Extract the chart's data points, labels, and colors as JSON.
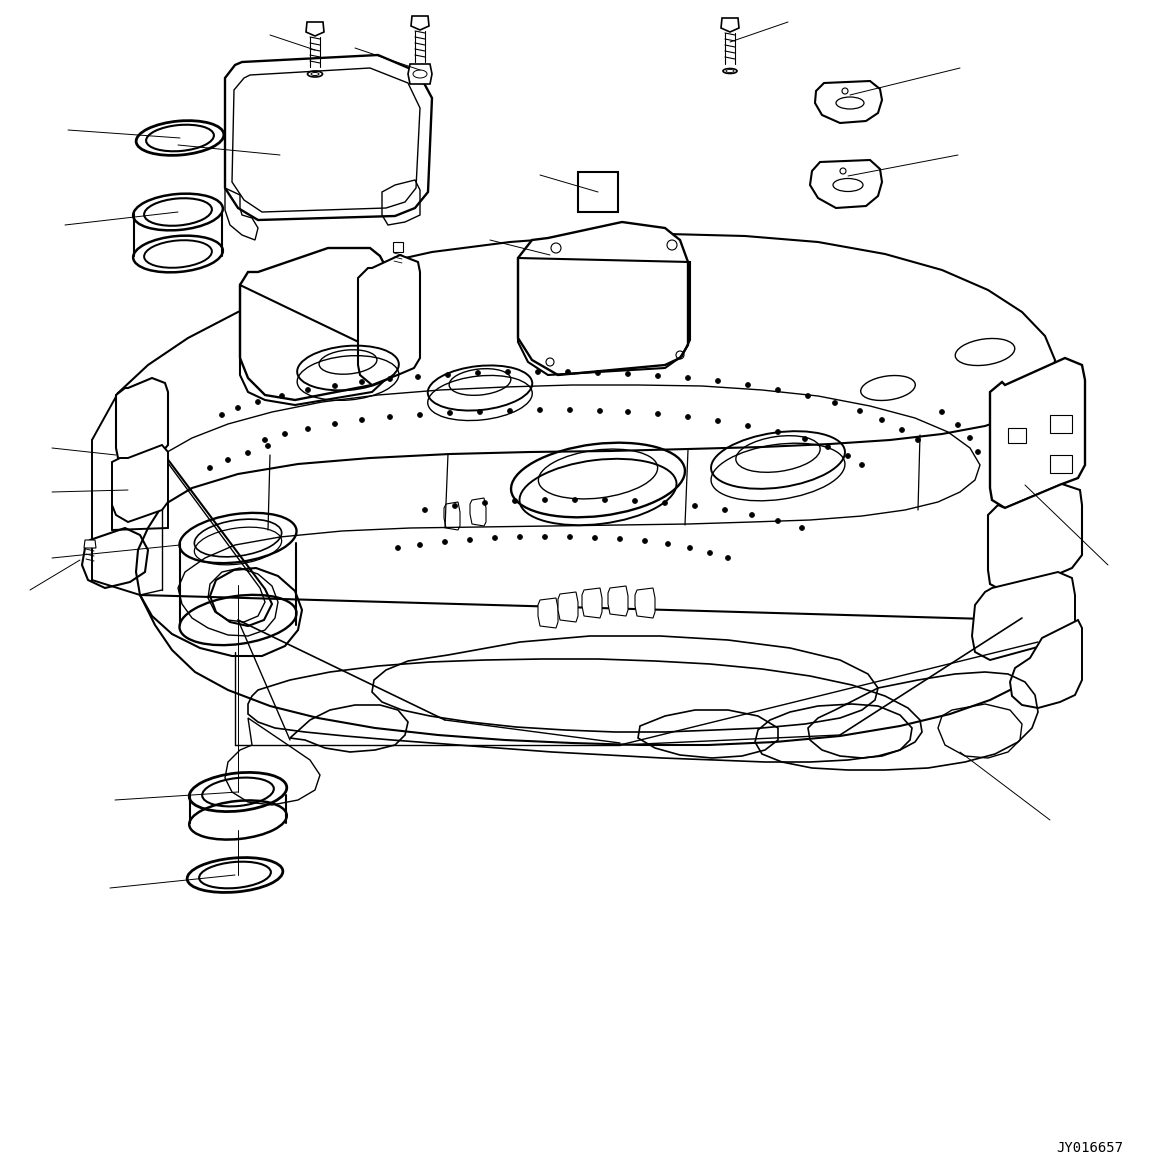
{
  "background_color": "#ffffff",
  "watermark": "JY016657",
  "line_color": "#000000",
  "line_width": 1.2,
  "fig_width": 11.63,
  "fig_height": 11.73
}
